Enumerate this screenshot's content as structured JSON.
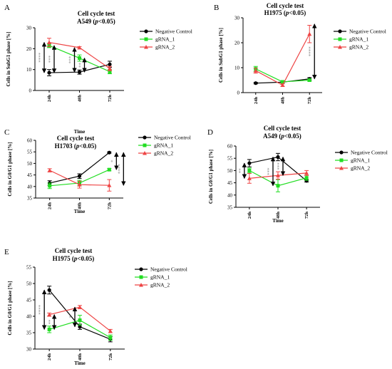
{
  "colors": {
    "negative_control": "#000000",
    "gRNA_1": "#22dd22",
    "gRNA_2": "#ee4444",
    "significance_text": "#888888"
  },
  "chart_data": [
    {
      "id": "A",
      "type": "line",
      "panel_label": "A",
      "title": "Cell cycle test",
      "subtitle_parts": [
        "A549 (",
        "p",
        "<0.05)"
      ],
      "xlabel": "Time",
      "ylabel": "Cells in SubG1 phase [%]",
      "categories": [
        "24h",
        "48h",
        "72h"
      ],
      "ylim": [
        0,
        30
      ],
      "yticks": [
        "0",
        "10",
        "20",
        "30"
      ],
      "legend_position": "right",
      "series": [
        {
          "name": "Negative Control",
          "key": "negative_control",
          "marker": "circle",
          "values": [
            8.5,
            8.8,
            12.5
          ],
          "errors": [
            1.5,
            1.0,
            1.5
          ]
        },
        {
          "name": "gRNA_1",
          "key": "gRNA_1",
          "marker": "square",
          "values": [
            21.5,
            15.5,
            9.0
          ],
          "errors": [
            1.0,
            1.5,
            1.0
          ]
        },
        {
          "name": "gRNA_2",
          "key": "gRNA_2",
          "marker": "triangle",
          "values": [
            23.0,
            20.5,
            10.5
          ],
          "errors": [
            2.0,
            0.5,
            1.0
          ]
        }
      ],
      "significance": [
        {
          "x": 0,
          "y1": 8.5,
          "y2": 23.0,
          "label": "****",
          "side": "left"
        },
        {
          "x": 0,
          "y1": 8.5,
          "y2": 21.5,
          "label": "***",
          "side": "right"
        },
        {
          "x": 1,
          "y1": 8.8,
          "y2": 20.5,
          "label": "***",
          "side": "left"
        },
        {
          "x": 1,
          "y1": 8.8,
          "y2": 15.5,
          "label": "**",
          "side": "right"
        }
      ]
    },
    {
      "id": "B",
      "type": "line",
      "panel_label": "B",
      "title": "Cell cycle test",
      "subtitle_parts": [
        "H1975 (",
        "p",
        "<0.05)"
      ],
      "xlabel": "",
      "ylabel": "Cells in SubG1 phase [%]",
      "categories": [
        "24h",
        "48h",
        "72h"
      ],
      "ylim": [
        0,
        30
      ],
      "yticks": [
        "0",
        "10",
        "20",
        "30"
      ],
      "legend_position": "right",
      "series": [
        {
          "name": "Negative Control",
          "key": "negative_control",
          "marker": "circle",
          "values": [
            3.8,
            4.2,
            5.5
          ],
          "errors": [
            0.3,
            0.3,
            0.5
          ]
        },
        {
          "name": "gRNA_1",
          "key": "gRNA_1",
          "marker": "square",
          "values": [
            9.5,
            4.3,
            5.0
          ],
          "errors": [
            1.0,
            0.5,
            0.5
          ]
        },
        {
          "name": "gRNA_2",
          "key": "gRNA_2",
          "marker": "triangle",
          "values": [
            8.8,
            3.0,
            23.5
          ],
          "errors": [
            1.0,
            0.5,
            3.5
          ]
        }
      ],
      "significance": [
        {
          "x": 2,
          "y1": 5.5,
          "y2": 27.5,
          "label": "****",
          "side": "right"
        }
      ]
    },
    {
      "id": "C",
      "type": "line",
      "panel_label": "C",
      "title": "Cell cycle test",
      "subtitle_parts": [
        "H1703 (",
        "p",
        "<0.05)"
      ],
      "xlabel": "Time",
      "ylabel": "Cells in G0/G1 phase [%]",
      "categories": [
        "24h",
        "48h",
        "72h"
      ],
      "ylim": [
        35,
        60
      ],
      "yticks": [
        "35",
        "40",
        "45",
        "50",
        "55",
        "60"
      ],
      "legend_position": "right",
      "series": [
        {
          "name": "Negative Control",
          "key": "negative_control",
          "marker": "circle",
          "values": [
            41.5,
            44.5,
            54.7
          ],
          "errors": [
            1.0,
            1.0,
            0.3
          ]
        },
        {
          "name": "gRNA_1",
          "key": "gRNA_1",
          "marker": "square",
          "values": [
            40.3,
            41.5,
            47.3
          ],
          "errors": [
            1.2,
            1.2,
            0.5
          ]
        },
        {
          "name": "gRNA_2",
          "key": "gRNA_2",
          "marker": "triangle",
          "values": [
            47.0,
            40.8,
            40.5
          ],
          "errors": [
            0.7,
            1.5,
            2.5
          ]
        }
      ],
      "significance": [
        {
          "x": 2,
          "y1": 47.3,
          "y2": 54.7,
          "label": "*",
          "side": "near"
        },
        {
          "x": 2,
          "y1": 40.5,
          "y2": 54.7,
          "label": "****",
          "side": "far"
        }
      ]
    },
    {
      "id": "D",
      "type": "line",
      "panel_label": "D",
      "title": "Cell cycle test",
      "subtitle_parts": [
        "A549 (",
        "p",
        "<0.05)"
      ],
      "xlabel": "Time",
      "ylabel": "Cells in G0/G1 phase [%]",
      "categories": [
        "24h",
        "48h",
        "72h"
      ],
      "ylim": [
        35,
        60
      ],
      "yticks": [
        "35",
        "40",
        "45",
        "50",
        "55",
        "60"
      ],
      "legend_position": "right",
      "series": [
        {
          "name": "Negative Control",
          "key": "negative_control",
          "marker": "circle",
          "values": [
            53.0,
            55.5,
            45.8
          ],
          "errors": [
            1.5,
            1.5,
            0.5
          ]
        },
        {
          "name": "gRNA_1",
          "key": "gRNA_1",
          "marker": "square",
          "values": [
            50.0,
            43.8,
            47.0
          ],
          "errors": [
            1.0,
            2.5,
            1.0
          ]
        },
        {
          "name": "gRNA_2",
          "key": "gRNA_2",
          "marker": "triangle",
          "values": [
            46.8,
            48.0,
            49.0
          ],
          "errors": [
            2.0,
            1.5,
            1.0
          ]
        }
      ],
      "significance": [
        {
          "x": 0,
          "y1": 46.8,
          "y2": 53.0,
          "label": "**",
          "side": "left"
        },
        {
          "x": 1,
          "y1": 43.8,
          "y2": 55.5,
          "label": "***",
          "side": "left"
        },
        {
          "x": 1,
          "y1": 48.0,
          "y2": 55.5,
          "label": "***",
          "side": "right"
        }
      ]
    },
    {
      "id": "E",
      "type": "line",
      "panel_label": "E",
      "title": "Cell cycle test",
      "subtitle_parts": [
        "H1975 (",
        "p",
        "<0.05)"
      ],
      "xlabel": "Time",
      "ylabel": "Cells in G0/G1 phase [%]",
      "categories": [
        "24h",
        "48h",
        "72h"
      ],
      "ylim": [
        30,
        55
      ],
      "yticks": [
        "30",
        "35",
        "40",
        "45",
        "50",
        "55"
      ],
      "legend_position": "right",
      "series": [
        {
          "name": "Negative Control",
          "key": "negative_control",
          "marker": "circle",
          "values": [
            48.0,
            36.8,
            33.0
          ],
          "errors": [
            1.2,
            0.8,
            0.8
          ]
        },
        {
          "name": "gRNA_1",
          "key": "gRNA_1",
          "marker": "square",
          "values": [
            36.0,
            38.8,
            33.5
          ],
          "errors": [
            1.0,
            1.5,
            0.8
          ]
        },
        {
          "name": "gRNA_2",
          "key": "gRNA_2",
          "marker": "triangle",
          "values": [
            40.5,
            42.8,
            35.5
          ],
          "errors": [
            0.5,
            0.5,
            0.5
          ]
        }
      ],
      "significance": [
        {
          "x": 0,
          "y1": 36.0,
          "y2": 48.0,
          "label": "****",
          "side": "left"
        },
        {
          "x": 0,
          "y1": 36.0,
          "y2": 40.5,
          "label": "**",
          "side": "right"
        },
        {
          "x": 1,
          "y1": 36.8,
          "y2": 42.8,
          "label": "*",
          "side": "left"
        }
      ]
    }
  ]
}
